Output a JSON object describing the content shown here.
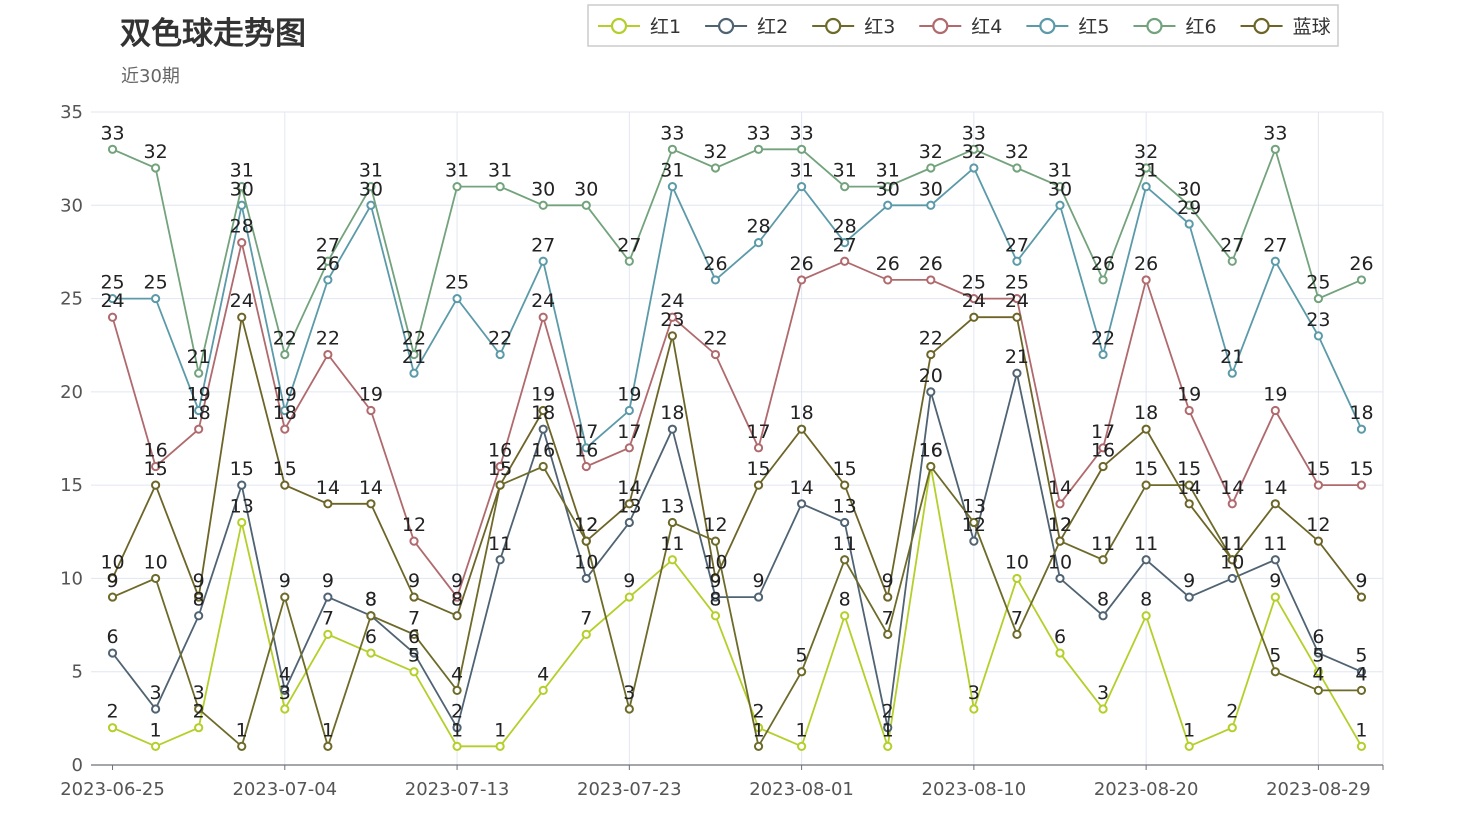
{
  "chart_data": {
    "type": "line",
    "title": "双色球走势图",
    "subtitle": "近30期",
    "x": [
      "2023-06-25",
      "2023-06-27",
      "2023-06-29",
      "2023-07-02",
      "2023-07-04",
      "2023-07-06",
      "2023-07-09",
      "2023-07-11",
      "2023-07-13",
      "2023-07-16",
      "2023-07-18",
      "2023-07-20",
      "2023-07-23",
      "2023-07-25",
      "2023-07-27",
      "2023-07-30",
      "2023-08-01",
      "2023-08-03",
      "2023-08-06",
      "2023-08-08",
      "2023-08-10",
      "2023-08-13",
      "2023-08-15",
      "2023-08-17",
      "2023-08-20",
      "2023-08-22",
      "2023-08-24",
      "2023-08-27",
      "2023-08-29",
      "2023-08-31"
    ],
    "x_ticks": [
      "2023-06-25",
      "2023-07-04",
      "2023-07-13",
      "2023-07-23",
      "2023-08-01",
      "2023-08-10",
      "2023-08-20",
      "2023-08-29"
    ],
    "ylim": [
      0,
      35
    ],
    "y_ticks": [
      0,
      5,
      10,
      15,
      20,
      25,
      30,
      35
    ],
    "grid": true,
    "legend_position": "top-right",
    "series": [
      {
        "name": "红1",
        "color": "#b5cf2a",
        "values": [
          2,
          1,
          2,
          13,
          3,
          7,
          6,
          5,
          1,
          1,
          4,
          7,
          9,
          11,
          8,
          2,
          1,
          8,
          1,
          16,
          3,
          10,
          6,
          3,
          8,
          1,
          2,
          9,
          5,
          1
        ]
      },
      {
        "name": "红2",
        "color": "#4f6373",
        "values": [
          6,
          3,
          8,
          15,
          4,
          9,
          8,
          6,
          2,
          11,
          18,
          10,
          13,
          18,
          9,
          9,
          14,
          13,
          2,
          20,
          12,
          21,
          10,
          8,
          11,
          9,
          10,
          11,
          6,
          5
        ]
      },
      {
        "name": "红3",
        "color": "#6e6a29",
        "values": [
          9,
          10,
          3,
          1,
          9,
          1,
          8,
          7,
          4,
          15,
          16,
          12,
          3,
          13,
          12,
          1,
          5,
          11,
          7,
          16,
          13,
          7,
          12,
          11,
          15,
          15,
          11,
          5,
          4,
          4
        ]
      },
      {
        "name": "红4",
        "color": "#b06a6d",
        "values": [
          24,
          16,
          18,
          28,
          18,
          22,
          19,
          12,
          9,
          16,
          24,
          16,
          17,
          24,
          22,
          17,
          26,
          27,
          26,
          26,
          25,
          25,
          14,
          17,
          26,
          19,
          14,
          19,
          15,
          15
        ]
      },
      {
        "name": "红5",
        "color": "#5b9aa9",
        "values": [
          25,
          25,
          19,
          30,
          19,
          26,
          30,
          21,
          25,
          22,
          27,
          17,
          19,
          31,
          26,
          28,
          31,
          28,
          30,
          30,
          32,
          27,
          30,
          22,
          31,
          29,
          21,
          27,
          23,
          18
        ]
      },
      {
        "name": "红6",
        "color": "#73a37c",
        "values": [
          33,
          32,
          21,
          31,
          22,
          27,
          31,
          22,
          31,
          31,
          30,
          30,
          27,
          33,
          32,
          33,
          33,
          31,
          31,
          32,
          33,
          32,
          31,
          26,
          32,
          30,
          27,
          33,
          25,
          26
        ]
      },
      {
        "name": "蓝球",
        "color": "#6d6528",
        "values": [
          10,
          15,
          9,
          24,
          15,
          14,
          14,
          9,
          8,
          15,
          19,
          12,
          14,
          23,
          10,
          15,
          18,
          15,
          9,
          22,
          24,
          24,
          12,
          16,
          18,
          14,
          11,
          14,
          12,
          9
        ]
      }
    ]
  }
}
